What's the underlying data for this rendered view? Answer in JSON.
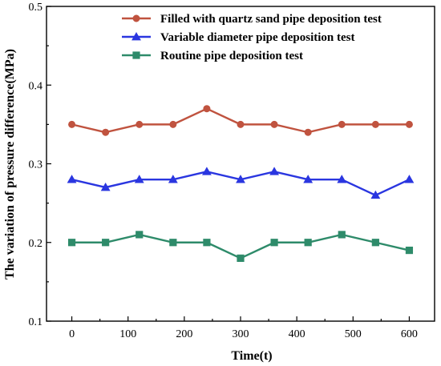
{
  "chart_data": {
    "type": "line",
    "xlabel": "Time(t)",
    "ylabel": "The variation of pressure difference(MPa)",
    "xlim": [
      -45,
      645
    ],
    "ylim": [
      0.1,
      0.5
    ],
    "x_ticks": [
      "0",
      "100",
      "200",
      "300",
      "400",
      "500",
      "600"
    ],
    "y_ticks": [
      "0.1",
      "0.2",
      "0.3",
      "0.4",
      "0.5"
    ],
    "grid": false,
    "legend_position": "top-right",
    "x": [
      0,
      60,
      120,
      180,
      240,
      300,
      360,
      420,
      480,
      540,
      600
    ],
    "series": [
      {
        "name": "Filled with quartz sand pipe deposition test",
        "color": "#c0533f",
        "marker": "circle",
        "values": [
          0.35,
          0.34,
          0.35,
          0.35,
          0.37,
          0.35,
          0.35,
          0.34,
          0.35,
          0.35,
          0.35
        ]
      },
      {
        "name": "Variable diameter pipe deposition test",
        "color": "#2a36e0",
        "marker": "triangle",
        "values": [
          0.28,
          0.27,
          0.28,
          0.28,
          0.29,
          0.28,
          0.29,
          0.28,
          0.28,
          0.26,
          0.28
        ]
      },
      {
        "name": "Routine pipe deposition test",
        "color": "#2e8b6a",
        "marker": "square",
        "values": [
          0.2,
          0.2,
          0.21,
          0.2,
          0.2,
          0.18,
          0.2,
          0.2,
          0.21,
          0.2,
          0.19
        ]
      }
    ]
  }
}
